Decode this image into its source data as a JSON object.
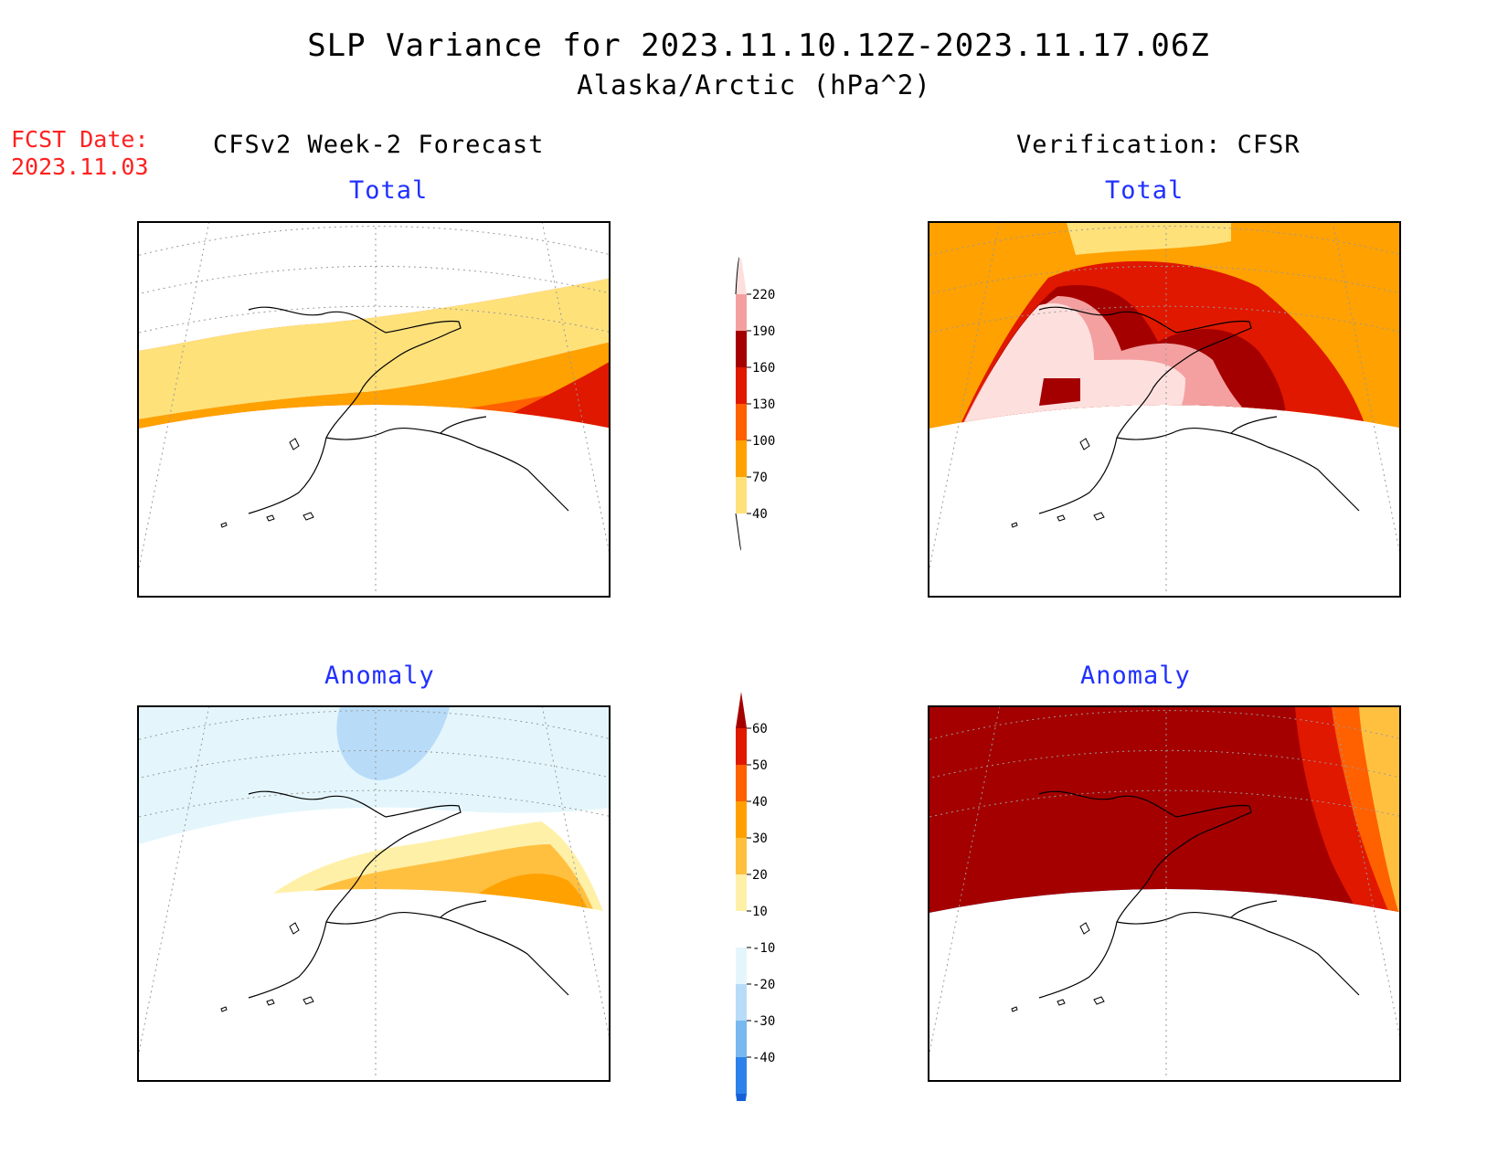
{
  "title": "SLP Variance for 2023.11.10.12Z-2023.11.17.06Z",
  "subtitle": "Alaska/Arctic (hPa^2)",
  "fcst_date_label": "FCST Date:",
  "fcst_date_value": "2023.11.03",
  "columns": {
    "left": "CFSv2 Week-2 Forecast",
    "right": "Verification: CFSR"
  },
  "panels": {
    "forecast_total": "Total",
    "verification_total": "Total",
    "forecast_anomaly": "Anomaly",
    "verification_anomaly": "Anomaly"
  },
  "colorbars": {
    "total": {
      "labels": [
        "40",
        "70",
        "100",
        "130",
        "160",
        "190",
        "220"
      ],
      "colors": [
        "#ffffff",
        "#ffe17a",
        "#ffa100",
        "#ff6000",
        "#e01800",
        "#a50000",
        "#f4a0a0",
        "#fde0de"
      ]
    },
    "anomaly": {
      "labels": [
        "-40",
        "-30",
        "-20",
        "-10",
        "10",
        "20",
        "30",
        "40",
        "50",
        "60"
      ],
      "colors": [
        "#1560d8",
        "#2c82ea",
        "#78b8f0",
        "#b8dcf8",
        "#e4f6fc",
        "#ffffff",
        "#fff0a8",
        "#ffc040",
        "#ffa000",
        "#ff6000",
        "#e01800",
        "#a50000"
      ]
    }
  },
  "map_colors": {
    "white": "#ffffff",
    "yellow": "#ffe17a",
    "orange": "#ffa100",
    "dark_orange": "#ff6000",
    "red": "#e01800",
    "dark_red": "#a50000",
    "pink": "#f4a0a0",
    "light_pink": "#fde0de",
    "pale_yellow": "#fff0a8",
    "light_orange": "#ffc040",
    "pale_blue": "#e4f6fc",
    "light_blue": "#b8dcf8",
    "mid_blue": "#78b8f0",
    "blue": "#2c82ea",
    "deep_blue": "#1560d8",
    "coast": "#000000",
    "grid": "#999999"
  }
}
